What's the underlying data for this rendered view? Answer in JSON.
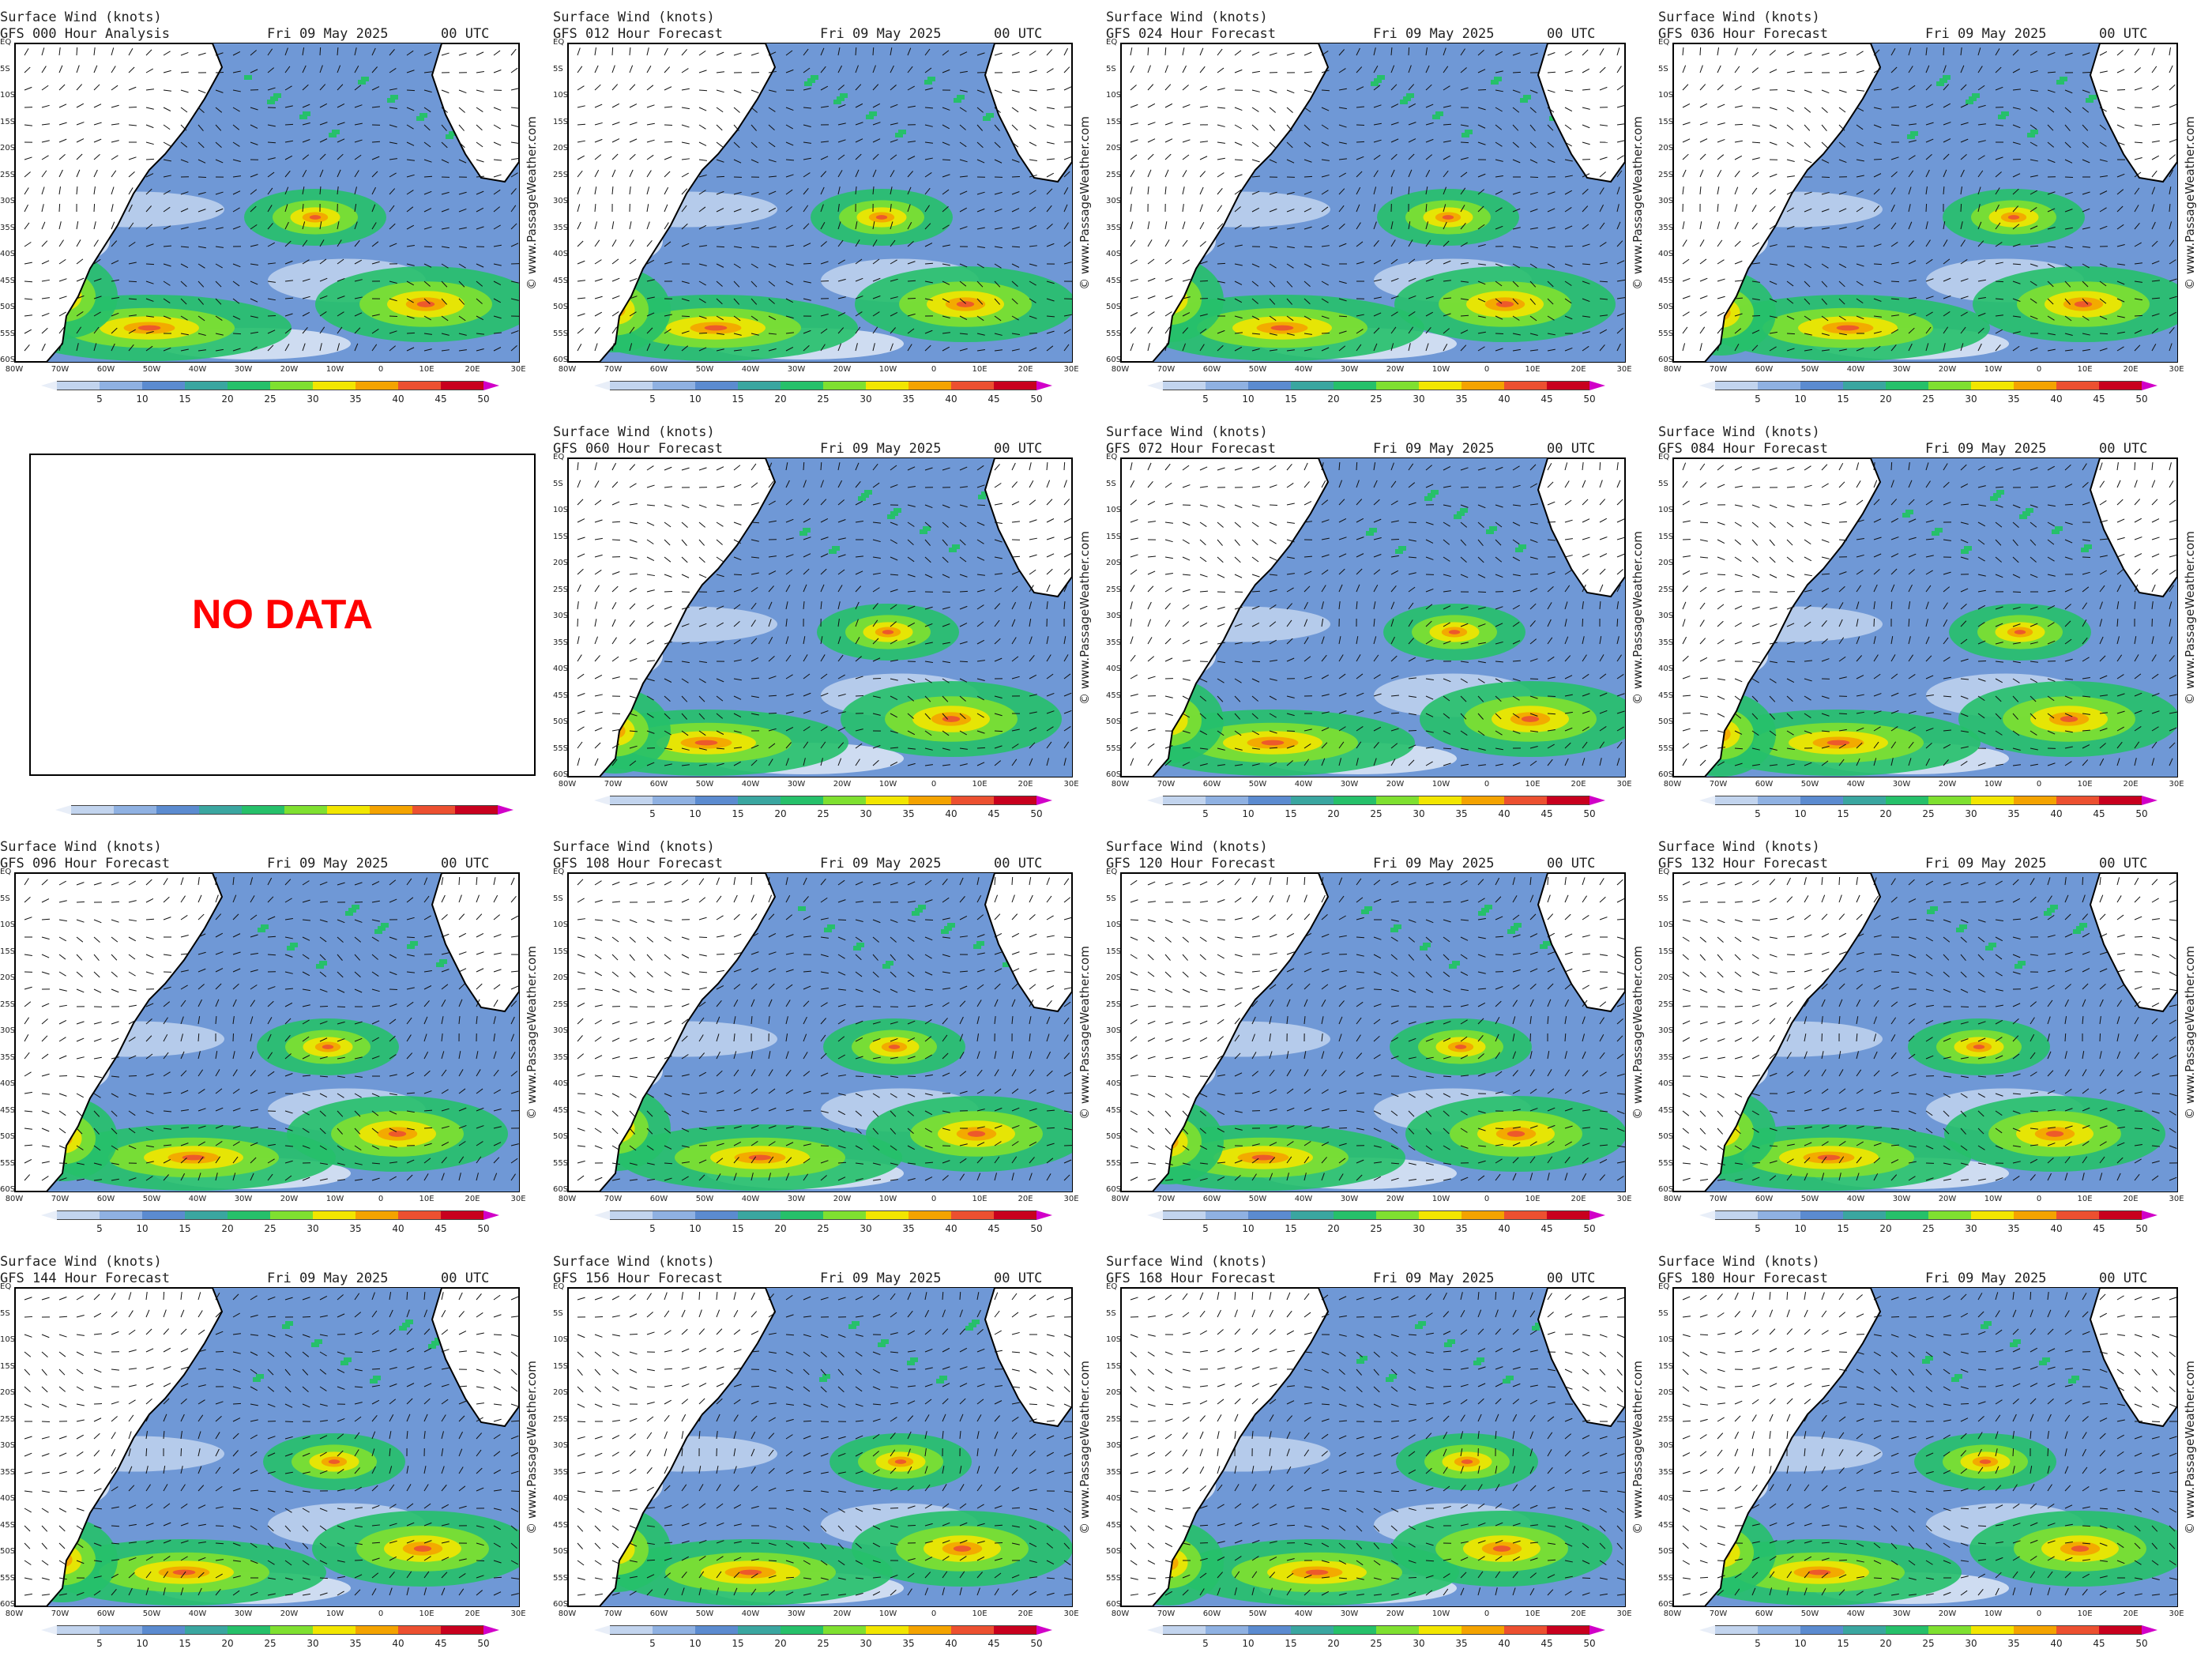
{
  "header": {
    "line1": "Surface Wind (knots)",
    "date": "Fri 09 May 2025",
    "utc": "00 UTC"
  },
  "credit": "© www.PassageWeather.com",
  "no_data_text": "NO DATA",
  "lat_labels": [
    "EQ",
    "5S",
    "10S",
    "15S",
    "20S",
    "25S",
    "30S",
    "35S",
    "40S",
    "45S",
    "50S",
    "55S",
    "60S"
  ],
  "lon_labels": [
    "80W",
    "70W",
    "60W",
    "50W",
    "40W",
    "30W",
    "20W",
    "10W",
    "0",
    "10E",
    "20E",
    "30E"
  ],
  "colorbar": {
    "ticks": [
      "5",
      "10",
      "15",
      "20",
      "25",
      "30",
      "35",
      "40",
      "45",
      "50"
    ],
    "colors": [
      "#e8eef8",
      "#c2d4ee",
      "#8fb1e2",
      "#5b8bd0",
      "#3aa6a0",
      "#26c06a",
      "#7fe030",
      "#f2e600",
      "#f4a300",
      "#ec5030",
      "#c8001e",
      "#d100c8"
    ]
  },
  "panels": [
    {
      "title": "GFS 000 Hour Analysis"
    },
    {
      "title": "GFS 012 Hour Forecast"
    },
    {
      "title": "GFS 024 Hour Forecast"
    },
    {
      "title": "GFS 036 Hour Forecast"
    },
    {
      "title": "NO DATA"
    },
    {
      "title": "GFS 060 Hour Forecast"
    },
    {
      "title": "GFS 072 Hour Forecast"
    },
    {
      "title": "GFS 084 Hour Forecast"
    },
    {
      "title": "GFS 096 Hour Forecast"
    },
    {
      "title": "GFS 108 Hour Forecast"
    },
    {
      "title": "GFS 120 Hour Forecast"
    },
    {
      "title": "GFS 132 Hour Forecast"
    },
    {
      "title": "GFS 144 Hour Forecast"
    },
    {
      "title": "GFS 156 Hour Forecast"
    },
    {
      "title": "GFS 168 Hour Forecast"
    },
    {
      "title": "GFS 180 Hour Forecast"
    }
  ]
}
